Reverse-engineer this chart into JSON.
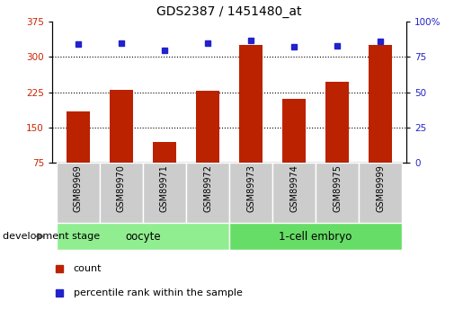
{
  "title": "GDS2387 / 1451480_at",
  "samples": [
    "GSM89969",
    "GSM89970",
    "GSM89971",
    "GSM89972",
    "GSM89973",
    "GSM89974",
    "GSM89975",
    "GSM89999"
  ],
  "counts": [
    185,
    230,
    120,
    228,
    325,
    210,
    248,
    325
  ],
  "percentile_ranks": [
    84,
    85,
    80,
    85,
    87,
    82,
    83,
    86
  ],
  "ylim_left": [
    75,
    375
  ],
  "ylim_right": [
    0,
    100
  ],
  "yticks_left": [
    75,
    150,
    225,
    300,
    375
  ],
  "yticks_right": [
    0,
    25,
    50,
    75,
    100
  ],
  "groups": [
    {
      "label": "oocyte",
      "start": 0,
      "end": 3,
      "color": "#90ee90"
    },
    {
      "label": "1-cell embryo",
      "start": 4,
      "end": 7,
      "color": "#66dd66"
    }
  ],
  "bar_color": "#bb2200",
  "dot_color": "#2222cc",
  "dev_stage_label": "development stage",
  "legend_count_label": "count",
  "legend_pct_label": "percentile rank within the sample",
  "grid_lines": [
    150,
    225,
    300
  ],
  "bar_width": 0.55
}
